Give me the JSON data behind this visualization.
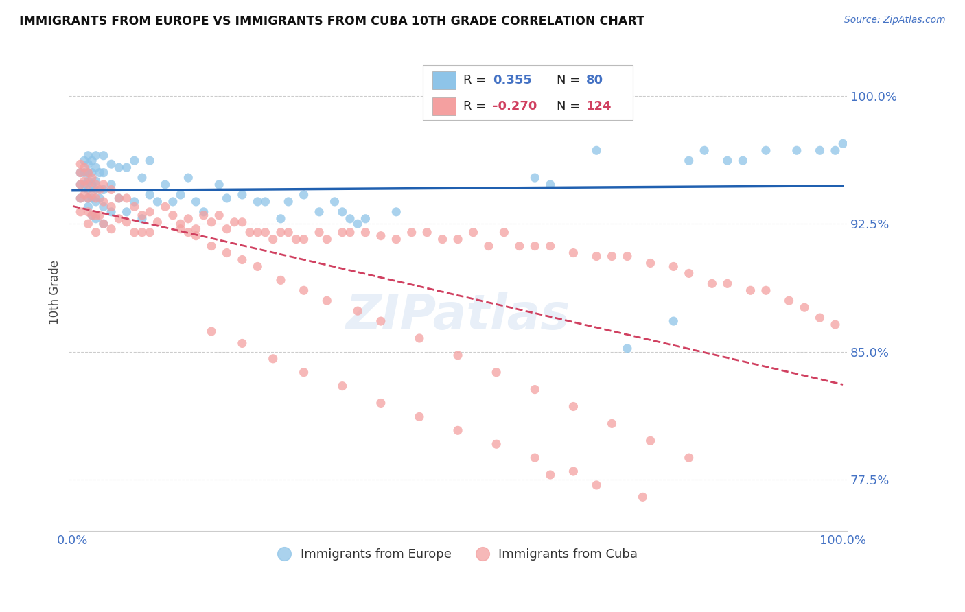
{
  "title": "IMMIGRANTS FROM EUROPE VS IMMIGRANTS FROM CUBA 10TH GRADE CORRELATION CHART",
  "source": "Source: ZipAtlas.com",
  "ylabel": "10th Grade",
  "ytick_vals": [
    0.775,
    0.85,
    0.925,
    1.0
  ],
  "ytick_labels": [
    "77.5%",
    "85.0%",
    "92.5%",
    "100.0%"
  ],
  "ymin": 0.745,
  "ymax": 1.025,
  "xmin": -0.005,
  "xmax": 1.005,
  "blue_R": 0.355,
  "blue_N": 80,
  "pink_R": -0.27,
  "pink_N": 124,
  "legend_label_blue": "Immigrants from Europe",
  "legend_label_pink": "Immigrants from Cuba",
  "blue_color": "#8ec4e8",
  "pink_color": "#f4a0a0",
  "trend_blue_color": "#2060b0",
  "trend_pink_color": "#d04060",
  "blue_text_color": "#4472c4",
  "background_color": "#ffffff",
  "watermark_text": "ZIPatlas",
  "blue_scatter_x": [
    0.01,
    0.01,
    0.01,
    0.015,
    0.015,
    0.015,
    0.02,
    0.02,
    0.02,
    0.02,
    0.02,
    0.02,
    0.02,
    0.025,
    0.025,
    0.025,
    0.025,
    0.025,
    0.03,
    0.03,
    0.03,
    0.03,
    0.03,
    0.03,
    0.035,
    0.035,
    0.04,
    0.04,
    0.04,
    0.04,
    0.04,
    0.05,
    0.05,
    0.05,
    0.06,
    0.06,
    0.07,
    0.07,
    0.08,
    0.08,
    0.09,
    0.09,
    0.1,
    0.1,
    0.11,
    0.12,
    0.13,
    0.14,
    0.15,
    0.16,
    0.17,
    0.19,
    0.2,
    0.22,
    0.24,
    0.25,
    0.27,
    0.28,
    0.3,
    0.32,
    0.34,
    0.35,
    0.36,
    0.37,
    0.38,
    0.42,
    0.6,
    0.62,
    0.68,
    0.72,
    0.78,
    0.8,
    0.82,
    0.85,
    0.87,
    0.9,
    0.94,
    0.97,
    0.99,
    1.0
  ],
  "blue_scatter_y": [
    0.955,
    0.948,
    0.94,
    0.962,
    0.955,
    0.948,
    0.965,
    0.96,
    0.955,
    0.95,
    0.945,
    0.94,
    0.935,
    0.962,
    0.955,
    0.948,
    0.94,
    0.93,
    0.965,
    0.958,
    0.95,
    0.945,
    0.938,
    0.928,
    0.955,
    0.94,
    0.965,
    0.955,
    0.945,
    0.935,
    0.925,
    0.96,
    0.948,
    0.932,
    0.958,
    0.94,
    0.958,
    0.932,
    0.962,
    0.938,
    0.952,
    0.928,
    0.962,
    0.942,
    0.938,
    0.948,
    0.938,
    0.942,
    0.952,
    0.938,
    0.932,
    0.948,
    0.94,
    0.942,
    0.938,
    0.938,
    0.928,
    0.938,
    0.942,
    0.932,
    0.938,
    0.932,
    0.928,
    0.925,
    0.928,
    0.932,
    0.952,
    0.948,
    0.968,
    0.852,
    0.868,
    0.962,
    0.968,
    0.962,
    0.962,
    0.968,
    0.968,
    0.968,
    0.968,
    0.972
  ],
  "pink_scatter_x": [
    0.01,
    0.01,
    0.01,
    0.01,
    0.01,
    0.015,
    0.015,
    0.015,
    0.02,
    0.02,
    0.02,
    0.02,
    0.02,
    0.025,
    0.025,
    0.025,
    0.03,
    0.03,
    0.03,
    0.03,
    0.035,
    0.035,
    0.04,
    0.04,
    0.04,
    0.05,
    0.05,
    0.05,
    0.06,
    0.06,
    0.07,
    0.07,
    0.08,
    0.08,
    0.09,
    0.09,
    0.1,
    0.1,
    0.11,
    0.12,
    0.13,
    0.14,
    0.15,
    0.15,
    0.16,
    0.17,
    0.18,
    0.19,
    0.2,
    0.21,
    0.22,
    0.23,
    0.24,
    0.25,
    0.26,
    0.27,
    0.28,
    0.29,
    0.3,
    0.32,
    0.33,
    0.35,
    0.36,
    0.38,
    0.4,
    0.42,
    0.44,
    0.46,
    0.48,
    0.5,
    0.52,
    0.54,
    0.56,
    0.58,
    0.6,
    0.62,
    0.65,
    0.68,
    0.7,
    0.72,
    0.75,
    0.78,
    0.8,
    0.83,
    0.85,
    0.88,
    0.9,
    0.93,
    0.95,
    0.97,
    0.99,
    0.14,
    0.16,
    0.18,
    0.2,
    0.22,
    0.24,
    0.27,
    0.3,
    0.33,
    0.37,
    0.4,
    0.45,
    0.5,
    0.55,
    0.6,
    0.65,
    0.7,
    0.75,
    0.8,
    0.18,
    0.22,
    0.26,
    0.3,
    0.35,
    0.4,
    0.45,
    0.5,
    0.55,
    0.6,
    0.65,
    0.62,
    0.68,
    0.74
  ],
  "pink_scatter_y": [
    0.96,
    0.955,
    0.948,
    0.94,
    0.932,
    0.958,
    0.95,
    0.942,
    0.955,
    0.948,
    0.94,
    0.932,
    0.925,
    0.952,
    0.942,
    0.93,
    0.948,
    0.94,
    0.93,
    0.92,
    0.945,
    0.93,
    0.948,
    0.938,
    0.925,
    0.945,
    0.935,
    0.922,
    0.94,
    0.928,
    0.94,
    0.926,
    0.935,
    0.92,
    0.93,
    0.92,
    0.932,
    0.92,
    0.926,
    0.935,
    0.93,
    0.922,
    0.928,
    0.92,
    0.922,
    0.93,
    0.926,
    0.93,
    0.922,
    0.926,
    0.926,
    0.92,
    0.92,
    0.92,
    0.916,
    0.92,
    0.92,
    0.916,
    0.916,
    0.92,
    0.916,
    0.92,
    0.92,
    0.92,
    0.918,
    0.916,
    0.92,
    0.92,
    0.916,
    0.916,
    0.92,
    0.912,
    0.92,
    0.912,
    0.912,
    0.912,
    0.908,
    0.906,
    0.906,
    0.906,
    0.902,
    0.9,
    0.896,
    0.89,
    0.89,
    0.886,
    0.886,
    0.88,
    0.876,
    0.87,
    0.866,
    0.925,
    0.918,
    0.912,
    0.908,
    0.904,
    0.9,
    0.892,
    0.886,
    0.88,
    0.874,
    0.868,
    0.858,
    0.848,
    0.838,
    0.828,
    0.818,
    0.808,
    0.798,
    0.788,
    0.862,
    0.855,
    0.846,
    0.838,
    0.83,
    0.82,
    0.812,
    0.804,
    0.796,
    0.788,
    0.78,
    0.778,
    0.772,
    0.765
  ]
}
